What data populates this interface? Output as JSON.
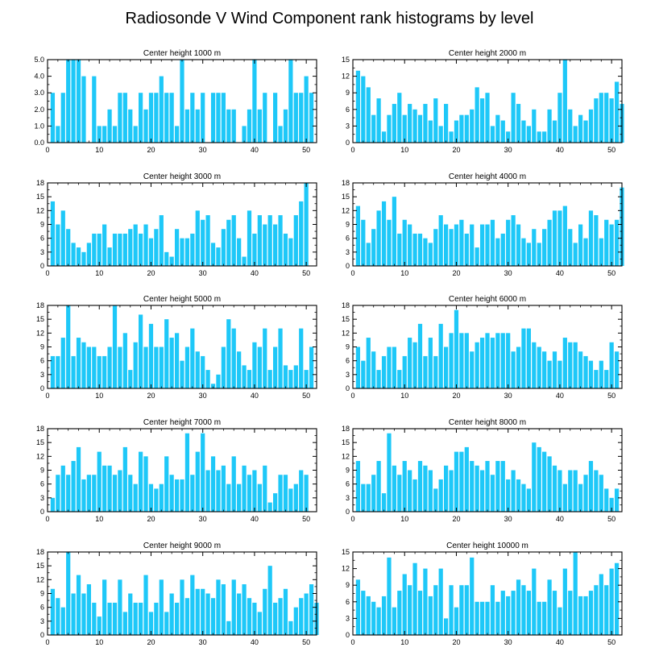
{
  "title": "Radiosonde V Wind Component rank histograms by level",
  "colors": {
    "bar": "#1ec8f8",
    "axis": "#000000"
  },
  "chart_data": [
    {
      "type": "bar",
      "title": "Center height 1000 m",
      "xlim": [
        0,
        52
      ],
      "ylim": [
        0,
        5.0
      ],
      "xticks": [
        0,
        10,
        20,
        30,
        40,
        50
      ],
      "yticks": [
        "0.0",
        "1.0",
        "2.0",
        "3.0",
        "4.0",
        "5.0"
      ],
      "values": [
        3,
        1,
        3,
        5,
        5,
        5,
        4,
        0,
        4,
        1,
        1,
        2,
        1,
        3,
        3,
        2,
        1,
        3,
        2,
        3,
        3,
        4,
        3,
        3,
        1,
        5,
        2,
        3,
        2,
        3,
        0,
        3,
        3,
        3,
        2,
        2,
        0,
        1,
        2,
        5,
        2,
        3,
        0,
        3,
        1,
        2,
        5,
        3,
        3,
        4,
        3
      ]
    },
    {
      "type": "bar",
      "title": "Center height 2000 m",
      "xlim": [
        0,
        52
      ],
      "ylim": [
        0,
        15
      ],
      "xticks": [
        0,
        10,
        20,
        30,
        40,
        50
      ],
      "yticks": [
        "0",
        "3",
        "6",
        "9",
        "12",
        "15"
      ],
      "values": [
        13,
        12,
        10,
        5,
        8,
        2,
        5,
        7,
        9,
        5,
        7,
        6,
        5,
        7,
        4,
        8,
        3,
        7,
        2,
        4,
        5,
        5,
        6,
        10,
        8,
        9,
        3,
        5,
        4,
        2,
        9,
        7,
        4,
        3,
        6,
        2,
        2,
        6,
        4,
        9,
        15,
        6,
        3,
        5,
        4,
        6,
        8,
        9,
        9,
        8,
        11,
        7
      ]
    },
    {
      "type": "bar",
      "title": "Center height 3000 m",
      "xlim": [
        0,
        52
      ],
      "ylim": [
        0,
        18
      ],
      "xticks": [
        0,
        10,
        20,
        30,
        40,
        50
      ],
      "yticks": [
        "0",
        "3",
        "6",
        "9",
        "12",
        "15",
        "18"
      ],
      "values": [
        14,
        9,
        12,
        8,
        5,
        4,
        3,
        5,
        7,
        7,
        9,
        4,
        7,
        7,
        7,
        8,
        9,
        7,
        9,
        6,
        8,
        11,
        3,
        2,
        8,
        6,
        6,
        7,
        12,
        10,
        11,
        5,
        4,
        8,
        10,
        11,
        6,
        2,
        12,
        7,
        11,
        9,
        11,
        9,
        11,
        7,
        6,
        11,
        14,
        18
      ]
    },
    {
      "type": "bar",
      "title": "Center height 4000 m",
      "xlim": [
        0,
        52
      ],
      "ylim": [
        0,
        18
      ],
      "xticks": [
        0,
        10,
        20,
        30,
        40,
        50
      ],
      "yticks": [
        "0",
        "3",
        "6",
        "9",
        "12",
        "15",
        "18"
      ],
      "values": [
        13,
        10,
        5,
        8,
        12,
        14,
        10,
        15,
        7,
        10,
        9,
        7,
        7,
        6,
        5,
        8,
        11,
        9,
        8,
        9,
        10,
        7,
        9,
        4,
        9,
        9,
        10,
        6,
        7,
        10,
        11,
        9,
        6,
        5,
        8,
        5,
        8,
        10,
        12,
        12,
        13,
        8,
        5,
        9,
        6,
        12,
        11,
        6,
        10,
        9,
        10,
        17
      ]
    },
    {
      "type": "bar",
      "title": "Center height 5000 m",
      "xlim": [
        0,
        52
      ],
      "ylim": [
        0,
        18
      ],
      "xticks": [
        0,
        10,
        20,
        30,
        40,
        50
      ],
      "yticks": [
        "0",
        "3",
        "6",
        "9",
        "12",
        "15",
        "18"
      ],
      "values": [
        7,
        7,
        11,
        18,
        7,
        11,
        10,
        9,
        9,
        7,
        7,
        9,
        18,
        9,
        12,
        4,
        10,
        16,
        9,
        14,
        9,
        9,
        15,
        11,
        12,
        6,
        9,
        13,
        8,
        7,
        4,
        1,
        3,
        9,
        15,
        13,
        8,
        5,
        4,
        10,
        9,
        13,
        4,
        9,
        13,
        5,
        4,
        5,
        13,
        4,
        9
      ]
    },
    {
      "type": "bar",
      "title": "Center height 6000 m",
      "xlim": [
        0,
        52
      ],
      "ylim": [
        0,
        18
      ],
      "xticks": [
        0,
        10,
        20,
        30,
        40,
        50
      ],
      "yticks": [
        "0",
        "3",
        "6",
        "9",
        "12",
        "15",
        "18"
      ],
      "values": [
        9,
        6,
        11,
        8,
        4,
        7,
        9,
        9,
        4,
        7,
        11,
        10,
        14,
        7,
        11,
        7,
        14,
        9,
        12,
        17,
        12,
        12,
        8,
        10,
        11,
        12,
        11,
        12,
        12,
        12,
        8,
        9,
        13,
        13,
        10,
        9,
        8,
        6,
        8,
        6,
        11,
        10,
        10,
        8,
        7,
        6,
        4,
        6,
        4,
        10,
        8
      ]
    },
    {
      "type": "bar",
      "title": "Center height 7000 m",
      "xlim": [
        0,
        52
      ],
      "ylim": [
        0,
        18
      ],
      "xticks": [
        0,
        10,
        20,
        30,
        40,
        50
      ],
      "yticks": [
        "0",
        "3",
        "6",
        "9",
        "12",
        "15",
        "18"
      ],
      "values": [
        3,
        8,
        10,
        8,
        11,
        14,
        7,
        8,
        8,
        13,
        10,
        10,
        8,
        9,
        14,
        8,
        6,
        13,
        12,
        6,
        5,
        6,
        12,
        8,
        7,
        7,
        17,
        8,
        13,
        17,
        9,
        12,
        9,
        10,
        6,
        12,
        6,
        10,
        8,
        9,
        6,
        10,
        2,
        4,
        8,
        8,
        5,
        6,
        9,
        8
      ]
    },
    {
      "type": "bar",
      "title": "Center height 8000 m",
      "xlim": [
        0,
        52
      ],
      "ylim": [
        0,
        18
      ],
      "xticks": [
        0,
        10,
        20,
        30,
        40,
        50
      ],
      "yticks": [
        "0",
        "3",
        "6",
        "9",
        "12",
        "15",
        "18"
      ],
      "values": [
        11,
        6,
        6,
        8,
        11,
        4,
        17,
        10,
        8,
        11,
        9,
        7,
        11,
        10,
        9,
        5,
        7,
        10,
        9,
        13,
        13,
        14,
        11,
        10,
        9,
        11,
        8,
        11,
        11,
        7,
        9,
        7,
        6,
        5,
        15,
        14,
        13,
        12,
        10,
        9,
        6,
        9,
        9,
        6,
        8,
        11,
        9,
        8,
        5,
        3,
        5
      ]
    },
    {
      "type": "bar",
      "title": "Center height 9000 m",
      "xlim": [
        0,
        52
      ],
      "ylim": [
        0,
        18
      ],
      "xticks": [
        0,
        10,
        20,
        30,
        40,
        50
      ],
      "yticks": [
        "0",
        "3",
        "6",
        "9",
        "12",
        "15",
        "18"
      ],
      "values": [
        10,
        8,
        6,
        18,
        9,
        13,
        9,
        11,
        7,
        4,
        12,
        7,
        7,
        12,
        5,
        9,
        7,
        7,
        13,
        5,
        7,
        12,
        5,
        9,
        7,
        12,
        8,
        13,
        10,
        10,
        9,
        8,
        12,
        11,
        3,
        12,
        9,
        11,
        8,
        7,
        5,
        10,
        15,
        7,
        8,
        10,
        3,
        6,
        8,
        9,
        11,
        7
      ]
    },
    {
      "type": "bar",
      "title": "Center height 10000 m",
      "xlim": [
        0,
        52
      ],
      "ylim": [
        0,
        15
      ],
      "xticks": [
        0,
        10,
        20,
        30,
        40,
        50
      ],
      "yticks": [
        "0",
        "3",
        "6",
        "9",
        "12",
        "15"
      ],
      "values": [
        10,
        8,
        7,
        6,
        5,
        7,
        14,
        5,
        8,
        11,
        9,
        13,
        8,
        12,
        7,
        9,
        12,
        3,
        9,
        5,
        9,
        9,
        14,
        6,
        6,
        6,
        9,
        6,
        8,
        7,
        8,
        10,
        9,
        8,
        12,
        6,
        6,
        10,
        8,
        5,
        12,
        8,
        15,
        7,
        7,
        8,
        9,
        11,
        9,
        12,
        13
      ]
    }
  ]
}
